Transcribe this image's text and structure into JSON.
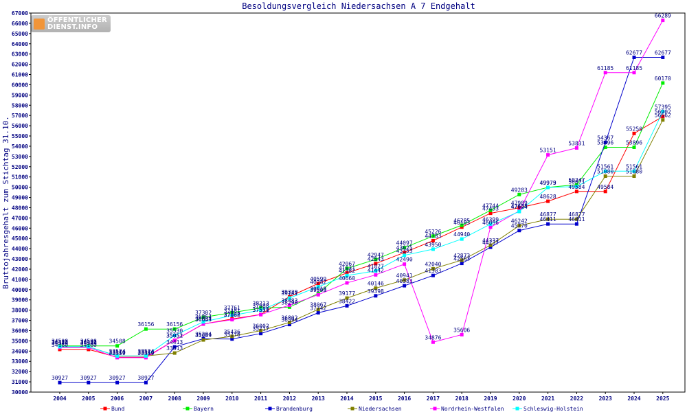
{
  "logo": {
    "line1": "ÖFFENTLICHER",
    "line2": "DIENST.INFO"
  },
  "chart_data": {
    "type": "line",
    "title": "Besoldungsvergleich Niedersachsen A 7 Endgehalt",
    "ylabel": "Bruttojahresgehalt zum Stichtag 31.10.",
    "xlabel": "",
    "ylim": [
      30000,
      67000
    ],
    "y_ticks": [
      30000,
      31000,
      32000,
      33000,
      34000,
      35000,
      36000,
      37000,
      38000,
      39000,
      40000,
      41000,
      42000,
      43000,
      44000,
      45000,
      46000,
      47000,
      48000,
      49000,
      50000,
      51000,
      52000,
      53000,
      54000,
      55000,
      56000,
      57000,
      58000,
      59000,
      60000,
      61000,
      62000,
      63000,
      64000,
      65000,
      66000,
      67000
    ],
    "categories": [
      "2004",
      "2005",
      "2006",
      "2007",
      "2008",
      "2009",
      "2010",
      "2011",
      "2012",
      "2013",
      "2014",
      "2015",
      "2016",
      "2017",
      "2018",
      "2019",
      "2020",
      "2021",
      "2022",
      "2023",
      "2024",
      "2025"
    ],
    "grid": false,
    "legend_position": "bottom",
    "series": [
      {
        "name": "Bund",
        "color": "#ff0000",
        "values": [
          34160,
          34160,
          33410,
          33410,
          35051,
          36643,
          37137,
          37571,
          39320,
          40599,
          41631,
          42543,
          43625,
          44783,
          46103,
          47453,
          47989,
          48628,
          49584,
          49584,
          55250,
          56902
        ]
      },
      {
        "name": "Bayern",
        "color": "#00ee00",
        "values": [
          34508,
          34508,
          34508,
          36156,
          36156,
          37302,
          37761,
          38213,
          38290,
          39618,
          42067,
          42947,
          44097,
          45226,
          46285,
          47744,
          49283,
          49979,
          50247,
          53896,
          53896,
          60170
        ]
      },
      {
        "name": "Brandenburg",
        "color": "#0000cc",
        "values": [
          30927,
          30927,
          30927,
          30927,
          34413,
          35204,
          35176,
          35717,
          36594,
          37742,
          38422,
          39398,
          40383,
          41383,
          42563,
          44137,
          45770,
          46411,
          46411,
          54367,
          62677,
          62677
        ]
      },
      {
        "name": "Niedersachsen",
        "color": "#808000",
        "values": [
          34433,
          34433,
          33524,
          33524,
          33813,
          35089,
          35436,
          36002,
          36802,
          38067,
          39177,
          40146,
          40941,
          42040,
          42873,
          44337,
          46242,
          46877,
          46877,
          51080,
          51080,
          56562
        ]
      },
      {
        "name": "Nordrhein-Westfalen",
        "color": "#ff00ff",
        "values": [
          34344,
          34344,
          33359,
          33359,
          35052,
          36654,
          37068,
          37559,
          38483,
          39503,
          40660,
          41442,
          42490,
          34876,
          35606,
          46096,
          47685,
          53151,
          53831,
          61185,
          61185,
          66289
        ]
      },
      {
        "name": "Schleswig-Holstein",
        "color": "#00ffff",
        "values": [
          34433,
          34433,
          33524,
          33524,
          35530,
          36854,
          37481,
          37988,
          39181,
          40282,
          41382,
          41827,
          43353,
          43950,
          44940,
          46399,
          47624,
          49973,
          50071,
          51561,
          51561,
          57395
        ]
      }
    ]
  }
}
